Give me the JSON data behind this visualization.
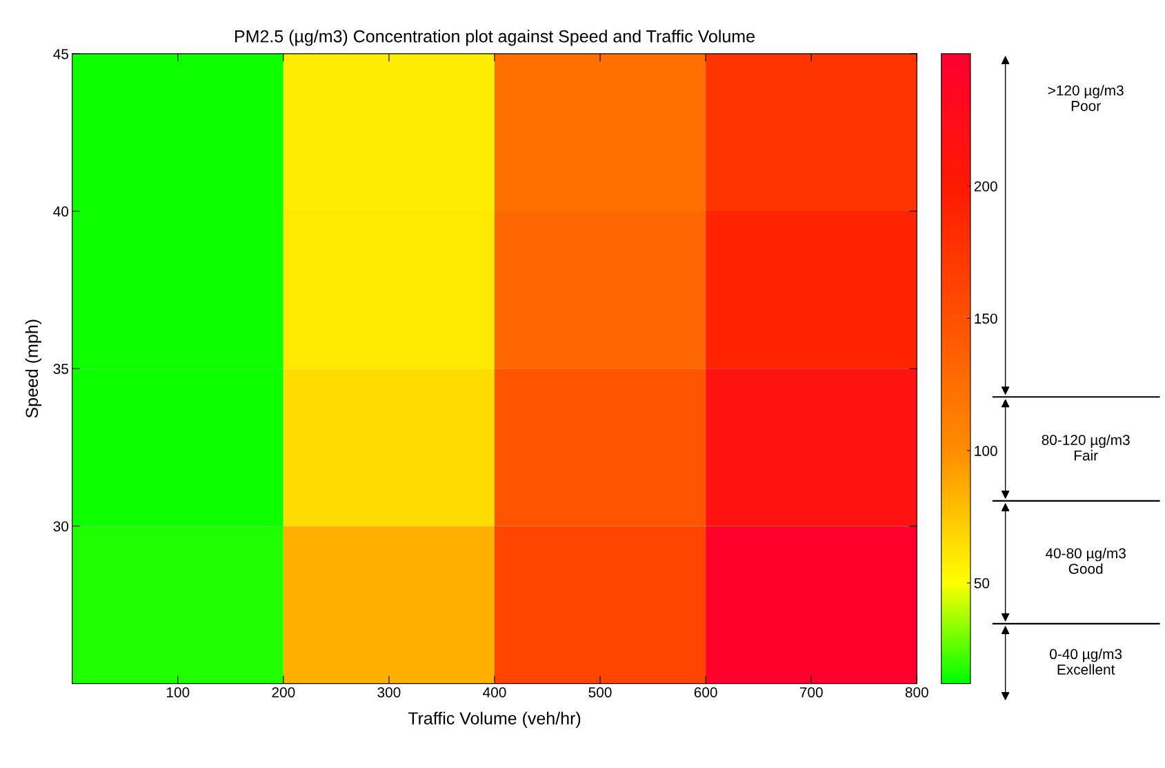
{
  "chart_data": {
    "type": "heatmap",
    "title": "PM2.5 (µg/m3) Concentration plot against Speed and Traffic Volume",
    "xlabel": "Traffic Volume (veh/hr)",
    "ylabel": "Speed (mph)",
    "xlim": [
      0,
      800
    ],
    "xticks": [
      100,
      200,
      300,
      400,
      500,
      600,
      700,
      800
    ],
    "ylim": [
      25,
      45
    ],
    "yticks": [
      30,
      35,
      40,
      45
    ],
    "cells": [
      [
        14,
        58,
        123,
        175
      ],
      [
        14,
        60,
        130,
        190
      ],
      [
        14,
        65,
        145,
        215
      ],
      [
        17,
        85,
        160,
        245
      ]
    ],
    "clim": [
      12,
      250
    ],
    "cticks": [
      50,
      100,
      150,
      200
    ],
    "annotations": [
      ">120 µg/m3\nPoor",
      "80-120 µg/m3\nFair",
      "40-80 µg/m3\nGood",
      "0-40 µg/m3\nExcellent"
    ]
  }
}
